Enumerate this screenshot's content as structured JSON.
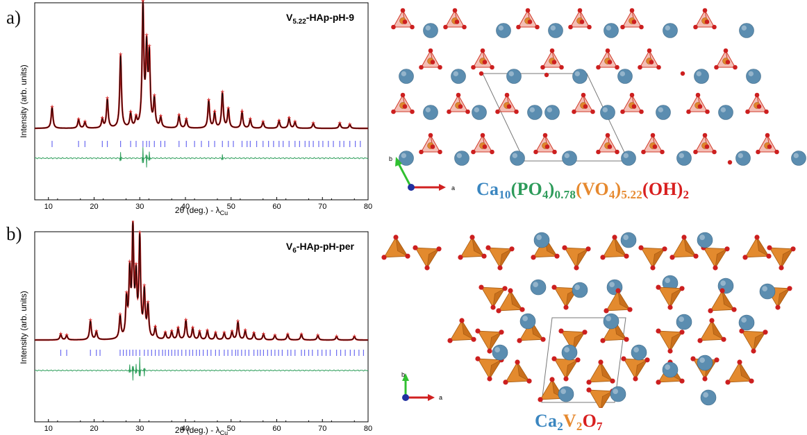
{
  "panels": [
    {
      "letter": "a)",
      "sample_label_main": "V",
      "sample_label_sub": "5.22",
      "sample_label_rest": "-HAp-pH-9"
    },
    {
      "letter": "b)",
      "sample_label_main": "V",
      "sample_label_sub": "6",
      "sample_label_rest": "-HAp-pH-per"
    }
  ],
  "axes": {
    "ylabel": "Intensity (arb. units)",
    "xlabel_main": "2θ (deg.) - λ",
    "xlabel_sub": "Cu"
  },
  "formulas": {
    "a": [
      {
        "t": "Ca",
        "c": "blue"
      },
      {
        "t": "10",
        "c": "blue",
        "sub": true
      },
      {
        "t": "(PO",
        "c": "green"
      },
      {
        "t": "4",
        "c": "green",
        "sub": true
      },
      {
        "t": ")",
        "c": "green"
      },
      {
        "t": "0.78",
        "c": "green",
        "sub": true
      },
      {
        "t": "(VO",
        "c": "orange"
      },
      {
        "t": "4",
        "c": "orange",
        "sub": true
      },
      {
        "t": ")",
        "c": "orange"
      },
      {
        "t": "5.22",
        "c": "orange",
        "sub": true
      },
      {
        "t": "(OH)",
        "c": "red"
      },
      {
        "t": "2",
        "c": "red",
        "sub": true
      }
    ],
    "b": [
      {
        "t": "Ca",
        "c": "blue"
      },
      {
        "t": "2",
        "c": "blue",
        "sub": true
      },
      {
        "t": "V",
        "c": "orange"
      },
      {
        "t": "2",
        "c": "orange",
        "sub": true
      },
      {
        "t": "O",
        "c": "red"
      },
      {
        "t": "7",
        "c": "red",
        "sub": true
      }
    ]
  },
  "axis_labels_small": {
    "a": "a",
    "b": "b"
  },
  "colors": {
    "observed": "#d42020",
    "calculated": "#000000",
    "bragg": "#6a6af0",
    "difference": "#2e9e5b",
    "ca_atom": "#5b8db0",
    "polyhedron": "#e0852c",
    "oxygen": "#cc1f1f"
  },
  "chart_data": [
    {
      "type": "line",
      "panel": "a",
      "xlim": [
        7,
        80
      ],
      "xticks": [
        10,
        20,
        30,
        40,
        50,
        60,
        70,
        80
      ],
      "xtick_labels": [
        "10",
        "20",
        "30",
        "40",
        "50",
        "60",
        "70",
        "80"
      ],
      "baseline": 0.06,
      "peaks": [
        [
          10.8,
          0.17
        ],
        [
          16.6,
          0.07
        ],
        [
          18.0,
          0.05
        ],
        [
          21.8,
          0.07
        ],
        [
          22.9,
          0.23
        ],
        [
          25.8,
          0.58
        ],
        [
          28.0,
          0.11
        ],
        [
          29.2,
          0.07
        ],
        [
          30.7,
          0.95
        ],
        [
          31.5,
          0.6
        ],
        [
          32.1,
          0.55
        ],
        [
          33.2,
          0.22
        ],
        [
          34.6,
          0.08
        ],
        [
          38.6,
          0.1
        ],
        [
          40.2,
          0.07
        ],
        [
          45.1,
          0.22
        ],
        [
          46.4,
          0.12
        ],
        [
          48.1,
          0.28
        ],
        [
          49.4,
          0.15
        ],
        [
          52.4,
          0.13
        ],
        [
          54.2,
          0.07
        ],
        [
          57.0,
          0.05
        ],
        [
          60.5,
          0.06
        ],
        [
          62.7,
          0.08
        ],
        [
          64.0,
          0.05
        ],
        [
          68.0,
          0.04
        ],
        [
          73.8,
          0.04
        ],
        [
          76.0,
          0.03
        ]
      ],
      "bragg_positions": [
        10.8,
        16.6,
        18.0,
        21.8,
        22.9,
        25.8,
        28.0,
        29.2,
        30.7,
        31.5,
        32.1,
        33.2,
        34.6,
        35.5,
        38.6,
        40.2,
        42.0,
        43.5,
        45.1,
        46.4,
        48.1,
        49.4,
        50.5,
        52.4,
        53.5,
        54.2,
        55.6,
        57.0,
        58.2,
        59.3,
        60.5,
        61.4,
        62.7,
        64.0,
        65.0,
        66.2,
        67.1,
        68.0,
        69.2,
        70.1,
        71.3,
        72.4,
        73.8,
        74.7,
        76.0,
        77.2,
        78.3
      ],
      "difference_spikes": [
        [
          25.8,
          0.05
        ],
        [
          30.7,
          0.09
        ],
        [
          31.5,
          -0.07
        ],
        [
          32.1,
          0.05
        ],
        [
          48.1,
          0.03
        ]
      ]
    },
    {
      "type": "line",
      "panel": "b",
      "xlim": [
        7,
        80
      ],
      "xticks": [
        10,
        20,
        30,
        40,
        50,
        60,
        70,
        80
      ],
      "xtick_labels": [
        "10",
        "20",
        "30",
        "40",
        "50",
        "60",
        "70",
        "80"
      ],
      "baseline": 0.06,
      "peaks": [
        [
          12.7,
          0.05
        ],
        [
          14.0,
          0.04
        ],
        [
          19.2,
          0.17
        ],
        [
          20.5,
          0.07
        ],
        [
          25.7,
          0.2
        ],
        [
          27.1,
          0.33
        ],
        [
          27.8,
          0.55
        ],
        [
          28.5,
          0.92
        ],
        [
          29.2,
          0.5
        ],
        [
          30.0,
          0.86
        ],
        [
          31.0,
          0.4
        ],
        [
          31.8,
          0.28
        ],
        [
          33.4,
          0.1
        ],
        [
          35.6,
          0.06
        ],
        [
          37.0,
          0.07
        ],
        [
          38.4,
          0.1
        ],
        [
          40.1,
          0.17
        ],
        [
          41.6,
          0.1
        ],
        [
          43.1,
          0.07
        ],
        [
          44.8,
          0.08
        ],
        [
          46.6,
          0.06
        ],
        [
          48.5,
          0.06
        ],
        [
          50.2,
          0.07
        ],
        [
          51.5,
          0.16
        ],
        [
          53.1,
          0.08
        ],
        [
          55.0,
          0.06
        ],
        [
          57.1,
          0.05
        ],
        [
          59.6,
          0.04
        ],
        [
          62.4,
          0.05
        ],
        [
          65.4,
          0.05
        ],
        [
          69.0,
          0.04
        ],
        [
          73.1,
          0.03
        ],
        [
          77.0,
          0.03
        ]
      ],
      "bragg_positions": [
        12.7,
        14.0,
        19.2,
        20.5,
        21.3,
        25.7,
        26.4,
        27.1,
        27.8,
        28.5,
        29.2,
        30.0,
        31.0,
        31.8,
        32.6,
        33.4,
        34.2,
        35.0,
        35.6,
        36.3,
        37.0,
        37.7,
        38.4,
        39.2,
        40.1,
        40.9,
        41.6,
        42.4,
        43.1,
        43.9,
        44.8,
        45.6,
        46.6,
        47.4,
        48.5,
        49.3,
        50.2,
        51.0,
        51.5,
        52.3,
        53.1,
        53.9,
        55.0,
        55.8,
        56.4,
        57.1,
        58.0,
        58.8,
        59.6,
        60.4,
        61.2,
        62.4,
        63.1,
        64.0,
        65.4,
        66.1,
        67.0,
        67.8,
        69.0,
        69.9,
        70.8,
        71.7,
        73.1,
        74.0,
        75.0,
        76.1,
        77.0,
        78.0,
        79.0
      ],
      "difference_spikes": [
        [
          27.8,
          0.05
        ],
        [
          28.5,
          -0.09
        ],
        [
          29.2,
          0.06
        ],
        [
          30.0,
          0.12
        ],
        [
          31.0,
          -0.05
        ]
      ]
    }
  ]
}
